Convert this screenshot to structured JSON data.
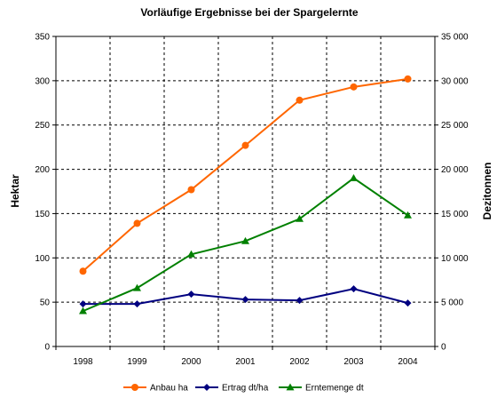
{
  "chart_data": {
    "type": "line",
    "title": "Vorläufige Ergebnisse bei der Spargelernte",
    "categories": [
      "1998",
      "1999",
      "2000",
      "2001",
      "2002",
      "2003",
      "2004"
    ],
    "y_left": {
      "label": "Hektar",
      "range": [
        0,
        350
      ],
      "ticks": [
        "0",
        "50",
        "100",
        "150",
        "200",
        "250",
        "300",
        "350"
      ]
    },
    "y_right": {
      "label": "Dezitonnen",
      "range": [
        0,
        35000
      ],
      "ticks": [
        "0",
        "5 000",
        "10 000",
        "15 000",
        "20 000",
        "25 000",
        "30 000",
        "35 000"
      ]
    },
    "grid": true,
    "legend_position": "bottom",
    "series": [
      {
        "name": "Anbau ha",
        "axis": "left",
        "color": "#FF6600",
        "marker": "circle",
        "values": [
          85,
          139,
          177,
          227,
          278,
          293,
          302
        ]
      },
      {
        "name": "Ertrag dt/ha",
        "axis": "left",
        "color": "#000080",
        "marker": "diamond",
        "values": [
          48,
          48,
          59,
          53,
          52,
          65,
          49
        ]
      },
      {
        "name": "Erntemenge dt",
        "axis": "right",
        "color": "#008000",
        "marker": "triangle",
        "values": [
          4000,
          6600,
          10400,
          11900,
          14400,
          19000,
          14800
        ]
      }
    ]
  }
}
